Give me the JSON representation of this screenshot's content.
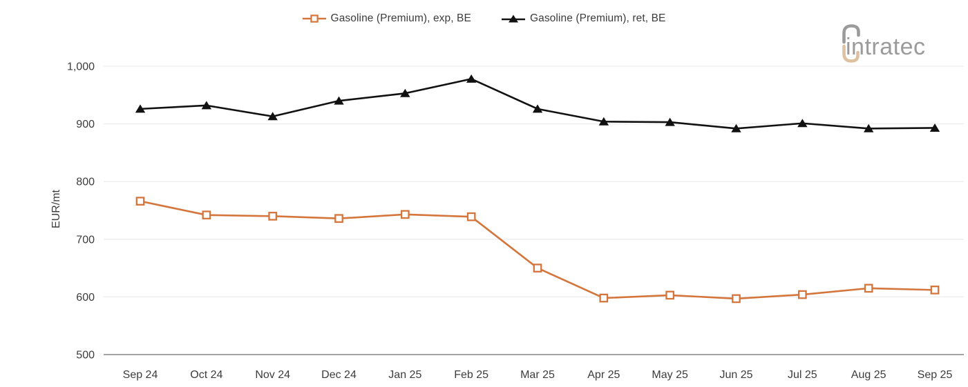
{
  "legend": {
    "items": [
      {
        "label": "Gasoline (Premium), exp, BE",
        "color": "#D4753C",
        "marker": "square"
      },
      {
        "label": "Gasoline (Premium), ret, BE",
        "color": "#111111",
        "marker": "triangle"
      }
    ]
  },
  "logo": {
    "text": "intratec",
    "text_color": "#9B9B9B",
    "arc_top_color": "#9B9B9B",
    "arc_bottom_color": "#DFC0A0"
  },
  "chart_data": {
    "type": "line",
    "title": "",
    "xlabel": "",
    "ylabel": "EUR/mt",
    "categories": [
      "Sep 24",
      "Oct 24",
      "Nov 24",
      "Dec 24",
      "Jan 25",
      "Feb 25",
      "Mar 25",
      "Apr 25",
      "May 25",
      "Jun 25",
      "Jul 25",
      "Aug 25",
      "Sep 25"
    ],
    "series": [
      {
        "name": "Gasoline (Premium), exp, BE",
        "color": "#D4753C",
        "marker": "square",
        "values": [
          766,
          742,
          740,
          736,
          743,
          739,
          650,
          598,
          603,
          597,
          604,
          615,
          612
        ]
      },
      {
        "name": "Gasoline (Premium), ret, BE",
        "color": "#111111",
        "marker": "triangle",
        "values": [
          926,
          932,
          913,
          940,
          953,
          978,
          926,
          904,
          903,
          892,
          901,
          892,
          893
        ]
      }
    ],
    "ylim": [
      500,
      1000
    ],
    "yticks": [
      500,
      600,
      700,
      800,
      900,
      1000
    ],
    "ytick_labels": [
      "500",
      "600",
      "700",
      "800",
      "900",
      "1,000"
    ],
    "grid": "horizontal",
    "gridline_color": "#EDEDED",
    "axis_line_color": "#A3A3A3",
    "tick_text_color": "#3C3C3C",
    "legend_position": "top-center"
  }
}
